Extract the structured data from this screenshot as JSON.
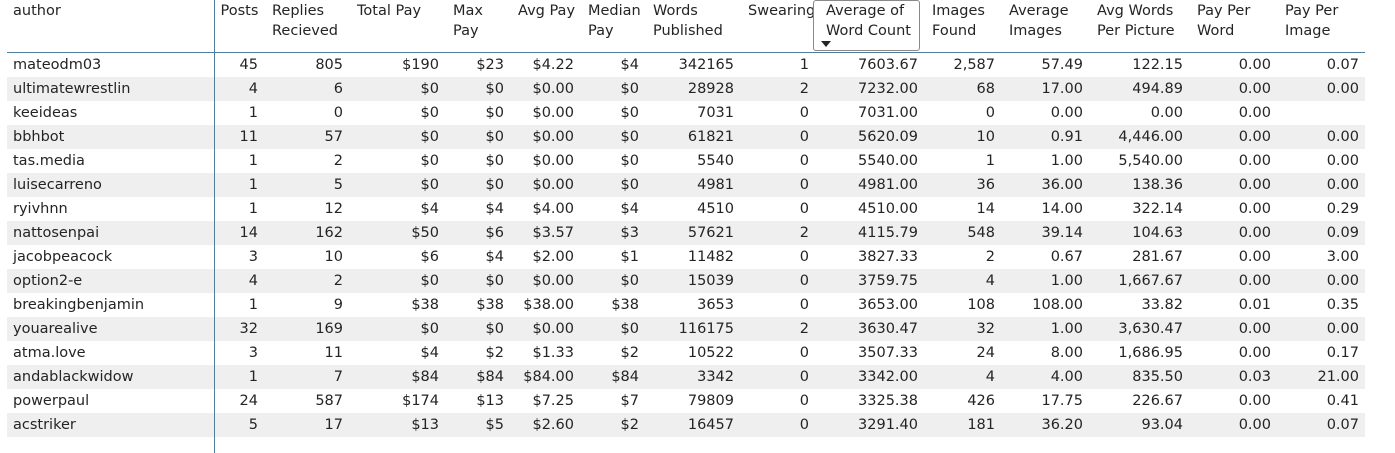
{
  "columns": [
    "author",
    "Posts",
    "Replies Recieved",
    "Total Pay",
    "Max Pay",
    "Avg Pay",
    "Median Pay",
    "Words Published",
    "Swearing",
    "Average of Word Count",
    "Images Found",
    "Average Images",
    "Avg Words Per Picture",
    "Pay Per Word",
    "Pay Per Image"
  ],
  "sorted_column": "Average of Word Count",
  "rows": [
    [
      "mateodm03",
      "45",
      "805",
      "$190",
      "$23",
      "$4.22",
      "$4",
      "342165",
      "1",
      "7603.67",
      "2,587",
      "57.49",
      "122.15",
      "0.00",
      "0.07"
    ],
    [
      "ultimatewrestlin",
      "4",
      "6",
      "$0",
      "$0",
      "$0.00",
      "$0",
      "28928",
      "2",
      "7232.00",
      "68",
      "17.00",
      "494.89",
      "0.00",
      "0.00"
    ],
    [
      "keeideas",
      "1",
      "0",
      "$0",
      "$0",
      "$0.00",
      "$0",
      "7031",
      "0",
      "7031.00",
      "0",
      "0.00",
      "0.00",
      "0.00",
      ""
    ],
    [
      "bbhbot",
      "11",
      "57",
      "$0",
      "$0",
      "$0.00",
      "$0",
      "61821",
      "0",
      "5620.09",
      "10",
      "0.91",
      "4,446.00",
      "0.00",
      "0.00"
    ],
    [
      "tas.media",
      "1",
      "2",
      "$0",
      "$0",
      "$0.00",
      "$0",
      "5540",
      "0",
      "5540.00",
      "1",
      "1.00",
      "5,540.00",
      "0.00",
      "0.00"
    ],
    [
      "luisecarreno",
      "1",
      "5",
      "$0",
      "$0",
      "$0.00",
      "$0",
      "4981",
      "0",
      "4981.00",
      "36",
      "36.00",
      "138.36",
      "0.00",
      "0.00"
    ],
    [
      "ryivhnn",
      "1",
      "12",
      "$4",
      "$4",
      "$4.00",
      "$4",
      "4510",
      "0",
      "4510.00",
      "14",
      "14.00",
      "322.14",
      "0.00",
      "0.29"
    ],
    [
      "nattosenpai",
      "14",
      "162",
      "$50",
      "$6",
      "$3.57",
      "$3",
      "57621",
      "2",
      "4115.79",
      "548",
      "39.14",
      "104.63",
      "0.00",
      "0.09"
    ],
    [
      "jacobpeacock",
      "3",
      "10",
      "$6",
      "$4",
      "$2.00",
      "$1",
      "11482",
      "0",
      "3827.33",
      "2",
      "0.67",
      "281.67",
      "0.00",
      "3.00"
    ],
    [
      "option2-e",
      "4",
      "2",
      "$0",
      "$0",
      "$0.00",
      "$0",
      "15039",
      "0",
      "3759.75",
      "4",
      "1.00",
      "1,667.67",
      "0.00",
      "0.00"
    ],
    [
      "breakingbenjamin",
      "1",
      "9",
      "$38",
      "$38",
      "$38.00",
      "$38",
      "3653",
      "0",
      "3653.00",
      "108",
      "108.00",
      "33.82",
      "0.01",
      "0.35"
    ],
    [
      "youarealive",
      "32",
      "169",
      "$0",
      "$0",
      "$0.00",
      "$0",
      "116175",
      "2",
      "3630.47",
      "32",
      "1.00",
      "3,630.47",
      "0.00",
      "0.00"
    ],
    [
      "atma.love",
      "3",
      "11",
      "$4",
      "$2",
      "$1.33",
      "$2",
      "10522",
      "0",
      "3507.33",
      "24",
      "8.00",
      "1,686.95",
      "0.00",
      "0.17"
    ],
    [
      "andablackwidow",
      "1",
      "7",
      "$84",
      "$84",
      "$84.00",
      "$84",
      "3342",
      "0",
      "3342.00",
      "4",
      "4.00",
      "835.50",
      "0.03",
      "21.00"
    ],
    [
      "powerpaul",
      "24",
      "587",
      "$174",
      "$13",
      "$7.25",
      "$7",
      "79809",
      "0",
      "3325.38",
      "426",
      "17.75",
      "226.67",
      "0.00",
      "0.41"
    ],
    [
      "acstriker",
      "5",
      "17",
      "$13",
      "$5",
      "$2.60",
      "$2",
      "16457",
      "0",
      "3291.40",
      "181",
      "36.20",
      "93.04",
      "0.00",
      "0.07"
    ],
    [
      "",
      "",
      "",
      "",
      "",
      "",
      "",
      "",
      "",
      "",
      "",
      "",
      "",
      "",
      ""
    ]
  ]
}
